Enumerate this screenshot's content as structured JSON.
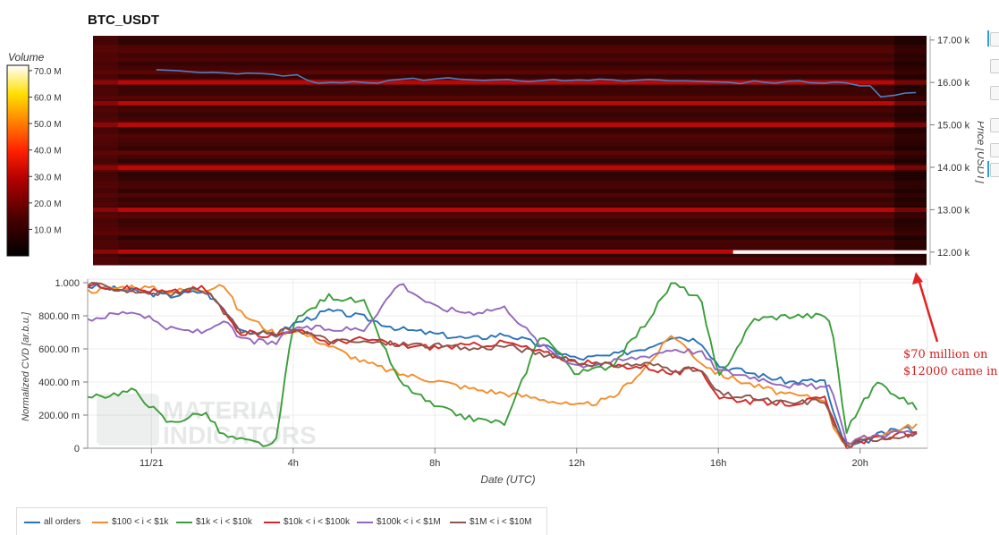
{
  "title": "BTC_USDT",
  "colorbar": {
    "label": "Volume",
    "ticks": [
      "70.0 M",
      "60.0 M",
      "50.0 M",
      "40.0 M",
      "30.0 M",
      "20.0 M",
      "10.0 M"
    ],
    "tick_values": [
      70,
      60,
      50,
      40,
      30,
      20,
      10
    ]
  },
  "annotation": {
    "line1": "$70 million on",
    "line2": "$12000 came in",
    "color": "#e32222"
  },
  "legend": [
    {
      "label": "all orders",
      "color": "#2b73b6"
    },
    {
      "label": "$100 < i < $1k",
      "color": "#f28e2b"
    },
    {
      "label": "$1k < i < $10k",
      "color": "#3a9e3a"
    },
    {
      "label": "$10k < i < $100k",
      "color": "#d62728"
    },
    {
      "label": "$100k < i < $1M",
      "color": "#9467bd"
    },
    {
      "label": "$1M < i < $10M",
      "color": "#8c564b"
    }
  ],
  "watermark": {
    "line1": "MATERIAL",
    "line2": "INDICATORS"
  },
  "chart_data": [
    {
      "type": "heatmap",
      "title": "BTC_USDT",
      "ylabel": "Price [USDT]",
      "ylim": [
        11700,
        17100
      ],
      "yticks": [
        17000,
        16000,
        15000,
        14000,
        13000,
        12000
      ],
      "ytick_labels": [
        "17.00 k",
        "16.00 k",
        "15.00 k",
        "14.00 k",
        "13.00 k",
        "12.00 k"
      ],
      "colorbar_label": "Volume",
      "colorbar_range": [
        0,
        72
      ],
      "price_line": {
        "color": "#4a7fc1",
        "t": [
          0,
          0.3,
          0.6,
          1,
          1.3,
          1.6,
          2,
          2.3,
          2.6,
          3,
          3.3,
          3.6,
          4,
          4.3,
          4.6,
          5,
          5.3,
          5.6,
          6,
          6.3,
          6.6,
          7,
          7.3,
          7.6,
          8,
          8.3,
          8.6,
          9,
          9.3,
          9.6,
          10,
          10.3,
          10.6,
          11,
          11.3,
          11.6,
          12,
          12.3,
          12.6,
          13,
          13.3,
          13.6,
          14,
          14.3,
          14.6,
          15,
          15.3,
          15.6,
          16,
          16.3,
          16.6,
          17,
          17.3,
          17.6,
          18,
          18.3,
          18.6,
          19,
          19.3,
          19.6,
          20,
          20.3,
          20.6,
          21,
          21.3,
          21.6
        ],
        "price": [
          16300,
          16290,
          16280,
          16250,
          16230,
          16240,
          16220,
          16200,
          16220,
          16210,
          16190,
          16150,
          16180,
          16050,
          15980,
          16000,
          15990,
          16020,
          15990,
          15980,
          16050,
          16080,
          16100,
          16050,
          16090,
          16110,
          16080,
          16060,
          16050,
          16060,
          16070,
          16040,
          16020,
          16050,
          16070,
          16040,
          16060,
          16050,
          16080,
          16060,
          16030,
          16050,
          16070,
          16060,
          16040,
          16040,
          16030,
          16020,
          16010,
          16000,
          15970,
          16040,
          16000,
          15980,
          16030,
          16040,
          15990,
          15980,
          16010,
          15990,
          15920,
          15920,
          15660,
          15700,
          15750,
          15760
        ]
      },
      "intense_price_bands": [
        16000,
        15510,
        15000,
        13990,
        13000,
        12010
      ],
      "highlighted_order": {
        "price": 12000,
        "start_t": 16.4,
        "color": "#ffffff"
      }
    },
    {
      "type": "line",
      "xlabel": "Date (UTC)",
      "ylabel": "Normalized CVD [ar.b.u.]",
      "ylim": [
        0,
        1000
      ],
      "xlim": [
        -1.8,
        21.9
      ],
      "xticks": [
        0,
        4,
        8,
        12,
        16,
        20
      ],
      "xtick_labels": [
        "11/21",
        "4h",
        "8h",
        "12h",
        "16h",
        "20h"
      ],
      "yticks": [
        0,
        200,
        400,
        600,
        800,
        1000
      ],
      "ytick_labels": [
        "0",
        "200.00 m",
        "400.00 m",
        "600.00 m",
        "800.00 m",
        "1.000"
      ],
      "x": [
        -1.8,
        -0.5,
        0.5,
        1.5,
        2,
        2.5,
        3.5,
        4,
        5,
        6,
        7,
        8,
        9,
        10,
        11,
        12,
        13,
        14,
        14.7,
        15.5,
        16,
        17,
        18,
        19,
        19.2,
        19.6,
        20,
        20.5,
        21.2,
        21.6
      ],
      "series": [
        {
          "name": "all orders",
          "values": [
            980,
            950,
            920,
            950,
            850,
            720,
            680,
            750,
            830,
            790,
            720,
            690,
            660,
            690,
            620,
            540,
            560,
            610,
            680,
            650,
            500,
            450,
            400,
            410,
            230,
            20,
            20,
            80,
            120,
            110
          ]
        },
        {
          "name": "$100 < i < $1k",
          "values": [
            950,
            980,
            950,
            960,
            1000,
            820,
            690,
            720,
            620,
            520,
            450,
            410,
            360,
            330,
            300,
            250,
            300,
            500,
            690,
            520,
            450,
            380,
            320,
            300,
            150,
            20,
            50,
            80,
            120,
            145
          ]
        },
        {
          "name": "$1k < i < $10k",
          "values": [
            300,
            350,
            150,
            220,
            80,
            50,
            10,
            760,
            920,
            880,
            400,
            250,
            180,
            150,
            700,
            450,
            500,
            770,
            1000,
            900,
            420,
            780,
            800,
            800,
            750,
            100,
            250,
            400,
            300,
            240
          ]
        },
        {
          "name": "$10k < i < $100k",
          "values": [
            990,
            960,
            940,
            970,
            840,
            700,
            680,
            720,
            640,
            660,
            620,
            610,
            620,
            640,
            580,
            520,
            500,
            490,
            450,
            480,
            310,
            280,
            270,
            300,
            180,
            10,
            40,
            60,
            80,
            80
          ]
        },
        {
          "name": "$100k < i < $1M",
          "values": [
            780,
            830,
            720,
            700,
            780,
            660,
            630,
            730,
            720,
            720,
            1000,
            850,
            820,
            850,
            620,
            500,
            520,
            560,
            600,
            580,
            470,
            430,
            380,
            370,
            360,
            30,
            60,
            80,
            100,
            90
          ]
        },
        {
          "name": "$1M < i < $10M",
          "values": [
            990,
            950,
            930,
            960,
            830,
            700,
            690,
            730,
            650,
            640,
            630,
            620,
            600,
            620,
            570,
            520,
            500,
            510,
            480,
            470,
            330,
            300,
            270,
            290,
            170,
            10,
            40,
            60,
            80,
            80
          ]
        }
      ]
    }
  ]
}
